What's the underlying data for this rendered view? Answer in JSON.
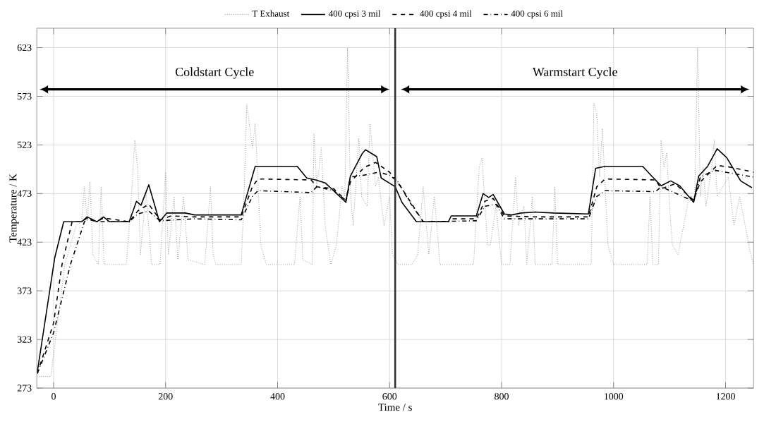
{
  "chart_data": {
    "type": "line",
    "xlabel": "Time / s",
    "ylabel": "Temperature / K",
    "xlim": [
      -30,
      1250
    ],
    "ylim": [
      273,
      643
    ],
    "xticks": [
      0,
      200,
      400,
      600,
      800,
      1000,
      1200
    ],
    "yticks": [
      273,
      323,
      373,
      423,
      473,
      523,
      573,
      623
    ],
    "grid": true,
    "legend": "top",
    "marker": "none",
    "ref_lines": [
      {
        "axis": "x",
        "value": 610,
        "color": "#333333",
        "line_style": "solid"
      }
    ],
    "annotations": [
      "Coldstart Cycle",
      "Warmstart Cycle"
    ],
    "series": [
      {
        "name": "T Exhaust",
        "color": "#9a9a9a",
        "line_style": "dotted",
        "x": [
          -30,
          -5,
          20,
          40,
          50,
          55,
          60,
          65,
          70,
          80,
          85,
          90,
          130,
          140,
          145,
          150,
          155,
          165,
          175,
          190,
          200,
          205,
          215,
          222,
          232,
          240,
          270,
          280,
          285,
          290,
          335,
          340,
          345,
          355,
          360,
          370,
          380,
          430,
          440,
          445,
          462,
          465,
          470,
          478,
          485,
          495,
          505,
          515,
          520,
          525,
          530,
          535,
          545,
          550,
          560,
          565,
          575,
          580,
          590,
          600,
          605,
          615,
          640,
          650,
          660,
          670,
          680,
          690,
          750,
          760,
          765,
          775,
          780,
          790,
          800,
          815,
          825,
          830,
          840,
          845,
          855,
          860,
          890,
          895,
          900,
          960,
          965,
          970,
          975,
          980,
          990,
          1000,
          1060,
          1065,
          1070,
          1080,
          1085,
          1090,
          1095,
          1100,
          1105,
          1115,
          1125,
          1135,
          1145,
          1150,
          1155,
          1160,
          1165,
          1175,
          1180,
          1185,
          1195,
          1205,
          1215,
          1225,
          1235,
          1245,
          1250
        ],
        "values": [
          285,
          285,
          400,
          440,
          444,
          480,
          445,
          485,
          410,
          400,
          480,
          400,
          400,
          480,
          528,
          500,
          410,
          475,
          400,
          400,
          495,
          410,
          470,
          405,
          470,
          405,
          400,
          480,
          410,
          400,
          400,
          470,
          565,
          520,
          545,
          420,
          400,
          400,
          470,
          405,
          400,
          535,
          480,
          520,
          440,
          400,
          420,
          480,
          470,
          623,
          475,
          440,
          530,
          470,
          460,
          545,
          480,
          490,
          440,
          470,
          410,
          400,
          400,
          410,
          480,
          410,
          470,
          400,
          400,
          500,
          510,
          420,
          420,
          460,
          400,
          400,
          490,
          440,
          460,
          400,
          470,
          400,
          400,
          480,
          400,
          400,
          566,
          555,
          490,
          540,
          420,
          400,
          400,
          470,
          400,
          400,
          528,
          500,
          515,
          460,
          420,
          410,
          440,
          470,
          470,
          623,
          470,
          500,
          460,
          500,
          528,
          470,
          480,
          490,
          440,
          470,
          440,
          410,
          400
        ]
      },
      {
        "name": "400 cpsi 3 mil",
        "color": "#000000",
        "line_style": "solid",
        "x": [
          -29,
          2,
          18,
          50,
          60,
          77,
          89,
          100,
          135,
          148,
          156,
          170,
          189,
          202,
          235,
          252,
          335,
          360,
          435,
          452,
          468,
          485,
          522,
          530,
          551,
          557,
          577,
          585,
          610,
          622,
          648,
          705,
          710,
          755,
          767,
          777,
          785,
          805,
          818,
          835,
          860,
          893,
          955,
          968,
          985,
          1052,
          1068,
          1085,
          1102,
          1118,
          1143,
          1152,
          1168,
          1185,
          1202,
          1227,
          1247
        ],
        "values": [
          290,
          407,
          444,
          444,
          449,
          444,
          449,
          444,
          444,
          465,
          461,
          482,
          444,
          453,
          453,
          451,
          451,
          501,
          501,
          489,
          487,
          484,
          464,
          491,
          514,
          518,
          511,
          489,
          480,
          464,
          444,
          444,
          450,
          450,
          473,
          469,
          472,
          452,
          451,
          453,
          454,
          453,
          452,
          499,
          501,
          501,
          491,
          481,
          486,
          481,
          464,
          491,
          501,
          519,
          510,
          486,
          479
        ]
      },
      {
        "name": "400 cpsi 4 mil",
        "color": "#000000",
        "line_style": "dashed",
        "x": [
          -29,
          0,
          15,
          33,
          50,
          60,
          77,
          89,
          135,
          150,
          170,
          190,
          210,
          250,
          335,
          355,
          365,
          460,
          470,
          500,
          522,
          530,
          555,
          575,
          600,
          620,
          660,
          705,
          710,
          755,
          770,
          785,
          805,
          860,
          955,
          970,
          985,
          1075,
          1085,
          1110,
          1143,
          1155,
          1185,
          1210,
          1250
        ],
        "values": [
          288,
          340,
          400,
          444,
          444,
          448,
          444,
          448,
          444,
          455,
          462,
          446,
          450,
          449,
          449,
          480,
          488,
          487,
          480,
          478,
          466,
          485,
          500,
          505,
          495,
          480,
          444,
          444,
          447,
          447,
          465,
          468,
          450,
          449,
          449,
          480,
          488,
          487,
          478,
          483,
          466,
          485,
          502,
          500,
          495
        ]
      },
      {
        "name": "400 cpsi 6 mil",
        "color": "#000000",
        "line_style": "dashdot",
        "x": [
          -29,
          0,
          30,
          55,
          60,
          77,
          135,
          150,
          170,
          190,
          250,
          335,
          355,
          365,
          460,
          470,
          500,
          522,
          530,
          555,
          580,
          600,
          615,
          635,
          660,
          755,
          770,
          790,
          805,
          955,
          970,
          985,
          1075,
          1085,
          1143,
          1155,
          1180,
          1200,
          1250
        ],
        "values": [
          288,
          330,
          400,
          444,
          447,
          444,
          444,
          452,
          455,
          445,
          447,
          446,
          470,
          476,
          474,
          480,
          476,
          466,
          490,
          492,
          495,
          492,
          485,
          465,
          444,
          445,
          460,
          462,
          447,
          447,
          470,
          476,
          475,
          480,
          465,
          490,
          497,
          495,
          490
        ]
      }
    ]
  }
}
